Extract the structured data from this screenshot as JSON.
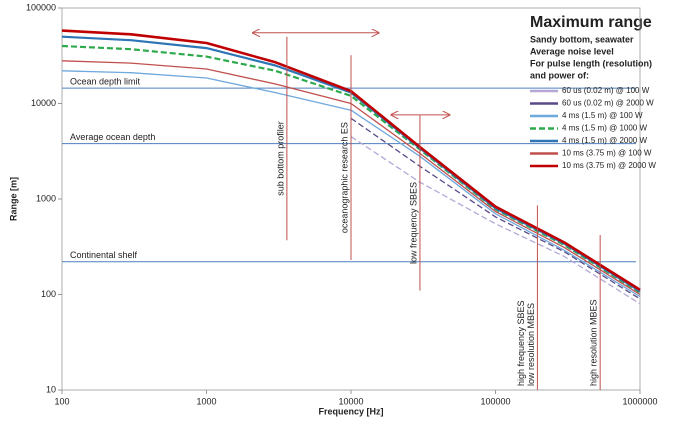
{
  "chart_data": {
    "type": "line",
    "title": "Maximum range",
    "subtitle_lines": [
      "Sandy bottom, seawater",
      "Average noise level",
      "For pulse length (resolution)",
      "and power of:"
    ],
    "x_label": "Frequency [Hz]",
    "y_label": "Range [m]",
    "log_x": true,
    "log_y": true,
    "xlim": [
      100,
      1000000
    ],
    "ylim": [
      10,
      100000
    ],
    "xticks": [
      100,
      1000,
      10000,
      100000,
      1000000
    ],
    "yticks": [
      10,
      100,
      1000,
      10000,
      100000
    ],
    "x": [
      100,
      300,
      1000,
      3000,
      10000,
      30000,
      100000,
      300000,
      1000000
    ],
    "series": [
      {
        "name": "60 us (0.02 m) @ 100 W",
        "color": "#b4a7d6",
        "dashed": true,
        "values": [
          null,
          null,
          null,
          null,
          4500,
          1500,
          550,
          250,
          80
        ]
      },
      {
        "name": "60 us (0.02 m) @ 2000 W",
        "color": "#5b4a8a",
        "dashed": true,
        "values": [
          null,
          null,
          null,
          null,
          7000,
          2200,
          650,
          280,
          90
        ]
      },
      {
        "name": "4 ms (1.5 m) @ 100 W",
        "color": "#6fa8dc",
        "dashed": false,
        "values": [
          22000,
          21000,
          18500,
          13000,
          8500,
          2800,
          700,
          290,
          95
        ]
      },
      {
        "name": "4 ms (1.5 m) @ 1000 W",
        "color": "#2eaa4e",
        "dashed": true,
        "values": [
          40000,
          37000,
          31000,
          22000,
          12000,
          3300,
          780,
          330,
          105
        ]
      },
      {
        "name": "4 ms (1.5 m) @ 2000 W",
        "color": "#2e75b6",
        "dashed": false,
        "values": [
          50000,
          46000,
          38000,
          25000,
          13000,
          3400,
          800,
          340,
          108
        ]
      },
      {
        "name": "10 ms (3.75 m) @ 100 W",
        "color": "#c0504d",
        "dashed": false,
        "values": [
          28000,
          26500,
          23000,
          16000,
          10000,
          3000,
          740,
          310,
          100
        ]
      },
      {
        "name": "10 ms (3.75 m) @ 2000 W",
        "color": "#c00000",
        "dashed": false,
        "values": [
          58000,
          53000,
          43000,
          27000,
          13500,
          3500,
          830,
          350,
          112
        ]
      }
    ],
    "reference_lines": [
      {
        "label": "Ocean depth limit",
        "value": 14500
      },
      {
        "label": "Average ocean depth",
        "value": 3800
      },
      {
        "label": "Continental shelf",
        "value": 220
      }
    ],
    "markers": [
      {
        "labels": [
          "sub bottom profiler"
        ],
        "x": 3600,
        "range": [
          370,
          50000
        ]
      },
      {
        "labels": [
          "oceanographic research ES"
        ],
        "x": 10000,
        "range": [
          230,
          32000
        ]
      },
      {
        "labels": [
          "low frequency SBES"
        ],
        "x": 30000,
        "range": [
          110,
          7500
        ]
      },
      {
        "labels": [
          "high frequency SBES",
          "low resolution MBES"
        ],
        "x": 195000,
        "range": [
          10,
          860
        ]
      },
      {
        "labels": [
          "high resolution MBES"
        ],
        "x": 530000,
        "range": [
          10,
          420
        ]
      }
    ],
    "arrows": [
      {
        "from": 2100,
        "to": 15500,
        "y": 55000
      },
      {
        "from": 19000,
        "to": 48000,
        "y": 7600
      }
    ]
  }
}
